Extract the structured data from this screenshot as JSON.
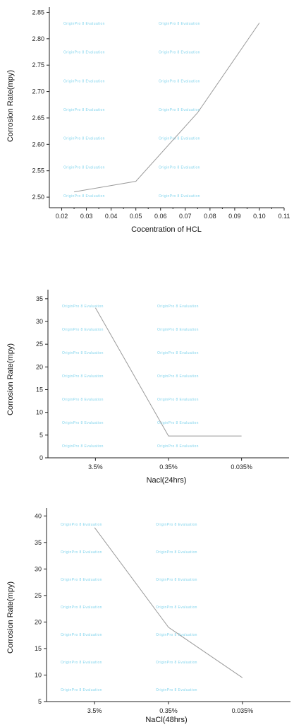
{
  "chart_data": [
    {
      "type": "line",
      "xlabel": "Cocentration of HCL",
      "ylabel": "Corrosion Rate(mpy)",
      "x": [
        0.025,
        0.05,
        0.075,
        0.1
      ],
      "series": [
        {
          "values": [
            2.51,
            2.53,
            2.66,
            2.83
          ]
        }
      ],
      "xlim": [
        0.015,
        0.11
      ],
      "ylim": [
        2.48,
        2.86
      ],
      "xticks": [
        "0.02",
        "0.03",
        "0.04",
        "0.05",
        "0.06",
        "0.07",
        "0.08",
        "0.09",
        "0.10",
        "0.11"
      ],
      "yticks": [
        "2.50",
        "2.55",
        "2.60",
        "2.65",
        "2.70",
        "2.75",
        "2.80",
        "2.85"
      ],
      "line_color": "#9a9a9a",
      "watermark": "OriginPro 8 Evaluation"
    },
    {
      "type": "line",
      "xlabel": "Nacl(24hrs)",
      "ylabel": "Corrosion Rate(mpy)",
      "categories": [
        "3.5%",
        "0.35%",
        "0.035%"
      ],
      "series": [
        {
          "values": [
            33,
            4.8,
            4.8
          ]
        }
      ],
      "ylim": [
        0,
        37
      ],
      "yticks": [
        "0",
        "5",
        "10",
        "15",
        "20",
        "25",
        "30",
        "35"
      ],
      "line_color": "#9a9a9a",
      "watermark": "OriginPro 8 Evaluation"
    },
    {
      "type": "line",
      "xlabel": "NaCl(48hrs)",
      "ylabel": "Corrosion Rate(mpy)",
      "categories": [
        "3.5%",
        "0.35%",
        "0.035%"
      ],
      "series": [
        {
          "values": [
            37.8,
            19,
            9.5
          ]
        }
      ],
      "ylim": [
        5,
        41.5
      ],
      "yticks": [
        "5",
        "10",
        "15",
        "20",
        "25",
        "30",
        "35",
        "40"
      ],
      "line_color": "#9a9a9a",
      "watermark": "OriginPro 8 Evaluation"
    }
  ]
}
